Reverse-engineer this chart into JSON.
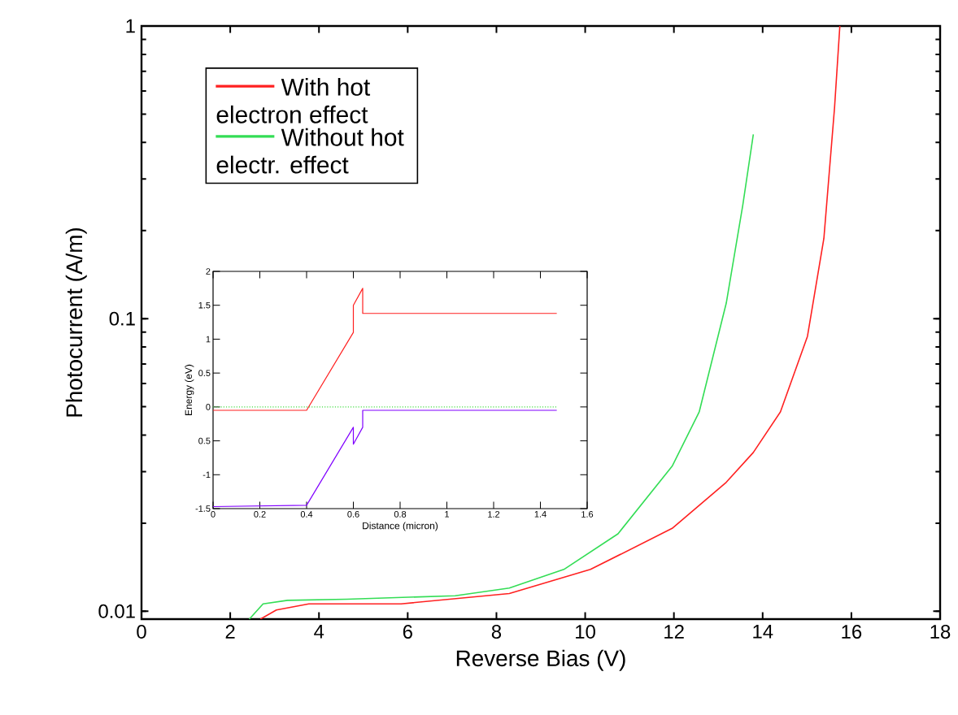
{
  "chart_data": [
    {
      "type": "line",
      "xlabel": "Reverse Bias (V)",
      "ylabel": "Photocurrent (A/m)",
      "log": "y",
      "legend": "top left",
      "xlim": [
        0,
        18
      ],
      "ylim": [
        0.0094,
        1
      ],
      "xticks": [
        0,
        2,
        4,
        6,
        8,
        10,
        12,
        14,
        16,
        18
      ],
      "yticks": [
        0.01,
        0.1,
        1
      ],
      "series": [
        {
          "name": "With hot electron effect",
          "color": "#ff2020",
          "x": [
            2.68,
            3.04,
            3.77,
            5.85,
            8.29,
            10.12,
            11.96,
            13.18,
            13.79,
            14.4,
            15.01,
            15.38,
            15.62,
            15.74
          ],
          "values": [
            0.0094,
            0.0101,
            0.0106,
            0.0106,
            0.0115,
            0.0139,
            0.0192,
            0.0276,
            0.0349,
            0.048,
            0.087,
            0.188,
            0.525,
            1.0
          ]
        },
        {
          "name": "Without hot electr. effect",
          "color": "#33dd55",
          "x": [
            2.43,
            2.74,
            3.29,
            4.63,
            7.07,
            8.29,
            9.52,
            10.74,
            11.96,
            12.57,
            13.18,
            13.55,
            13.79
          ],
          "values": [
            0.0094,
            0.0106,
            0.0109,
            0.011,
            0.0113,
            0.012,
            0.0139,
            0.0184,
            0.0313,
            0.048,
            0.113,
            0.243,
            0.426
          ]
        }
      ]
    },
    {
      "type": "line",
      "xlabel": "Distance (micron)",
      "ylabel": "Energy (eV)",
      "xlim": [
        0,
        1.6
      ],
      "ylim": [
        -1.5,
        2
      ],
      "xticks": [
        0,
        0.2,
        0.4,
        0.6,
        0.8,
        1,
        1.2,
        1.4,
        1.6
      ],
      "yticks": [
        -1.5,
        -1,
        {
          "value": -0.5,
          "label": "0.5"
        },
        0,
        0.5,
        1,
        1.5,
        2
      ],
      "series": [
        {
          "color": "#ff2020",
          "x": [
            0,
            0.4,
            0.6,
            0.6,
            0.64,
            0.64,
            1.47
          ],
          "values": [
            -0.05,
            -0.05,
            1.1,
            1.5,
            1.75,
            1.38,
            1.38
          ]
        },
        {
          "color": "#44dd44",
          "line_style": "dotted",
          "x": [
            0,
            1.47
          ],
          "values": [
            0,
            0
          ]
        },
        {
          "color": "#8000ff",
          "x": [
            0,
            0.4,
            0.6,
            0.6,
            0.64,
            0.64,
            1.47
          ],
          "values": [
            -1.47,
            -1.45,
            -0.3,
            -0.55,
            -0.3,
            -0.05,
            -0.05
          ]
        }
      ]
    }
  ]
}
